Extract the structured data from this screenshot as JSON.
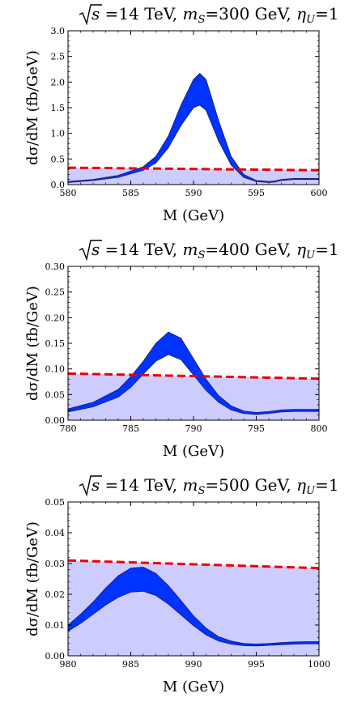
{
  "chart_data": [
    {
      "type": "area",
      "title_parts": {
        "sqrt_arg": "s",
        "rest": " =14 TeV, ",
        "m_sym": "m",
        "m_sub": "S",
        "m_val": "=300 GeV, ",
        "eta_sym": "η",
        "eta_sub": "U",
        "eta_val": "=1"
      },
      "xlabel": "M (GeV)",
      "ylabel": "dσ/dM (fb/GeV)",
      "xlim": [
        580,
        600
      ],
      "ylim": [
        0,
        3.0
      ],
      "xticks": [
        "580",
        "585",
        "590",
        "595",
        "600"
      ],
      "yticks": [
        "0.0",
        "0.5",
        "1.0",
        "1.5",
        "2.0",
        "2.5",
        "3.0"
      ],
      "background": {
        "name": "background",
        "color": "#ccccff",
        "x": [
          580,
          600
        ],
        "y": [
          0.33,
          0.28
        ]
      },
      "signal": {
        "name": "signal band",
        "color": "#0033ff",
        "x": [
          580,
          582,
          584,
          586,
          587,
          588,
          589,
          590,
          590.5,
          591,
          592,
          593,
          594,
          595,
          596,
          596.5,
          597,
          598,
          599,
          600
        ],
        "upper": [
          0.06,
          0.1,
          0.18,
          0.35,
          0.55,
          0.95,
          1.55,
          2.05,
          2.17,
          2.05,
          1.25,
          0.55,
          0.2,
          0.08,
          0.06,
          0.07,
          0.1,
          0.12,
          0.12,
          0.12
        ],
        "lower": [
          0.04,
          0.08,
          0.14,
          0.28,
          0.42,
          0.72,
          1.15,
          1.5,
          1.55,
          1.45,
          0.85,
          0.38,
          0.14,
          0.06,
          0.04,
          0.05,
          0.08,
          0.1,
          0.1,
          0.1
        ]
      }
    },
    {
      "type": "area",
      "title_parts": {
        "sqrt_arg": "s",
        "rest": " =14 TeV, ",
        "m_sym": "m",
        "m_sub": "S",
        "m_val": "=400 GeV, ",
        "eta_sym": "η",
        "eta_sub": "U",
        "eta_val": "=1"
      },
      "xlabel": "M (GeV)",
      "ylabel": "dσ/dM (fb/GeV)",
      "xlim": [
        780,
        800
      ],
      "ylim": [
        0,
        0.3
      ],
      "xticks": [
        "780",
        "785",
        "790",
        "795",
        "800"
      ],
      "yticks": [
        "0.00",
        "0.05",
        "0.10",
        "0.15",
        "0.20",
        "0.25",
        "0.30"
      ],
      "background": {
        "name": "background",
        "color": "#ccccff",
        "x": [
          780,
          800
        ],
        "y": [
          0.091,
          0.081
        ]
      },
      "signal": {
        "name": "signal band",
        "color": "#0033ff",
        "x": [
          780,
          782,
          784,
          785,
          786,
          787,
          788,
          789,
          790,
          791,
          792,
          793,
          794,
          795,
          796,
          797,
          798,
          799,
          800
        ],
        "upper": [
          0.022,
          0.035,
          0.06,
          0.085,
          0.115,
          0.15,
          0.172,
          0.16,
          0.12,
          0.08,
          0.048,
          0.028,
          0.018,
          0.015,
          0.017,
          0.02,
          0.021,
          0.021,
          0.021
        ],
        "lower": [
          0.016,
          0.026,
          0.045,
          0.064,
          0.09,
          0.115,
          0.128,
          0.118,
          0.088,
          0.058,
          0.035,
          0.02,
          0.013,
          0.011,
          0.013,
          0.016,
          0.017,
          0.017,
          0.017
        ]
      }
    },
    {
      "type": "area",
      "title_parts": {
        "sqrt_arg": "s",
        "rest": " =14 TeV, ",
        "m_sym": "m",
        "m_sub": "S",
        "m_val": "=500 GeV, ",
        "eta_sym": "η",
        "eta_sub": "U",
        "eta_val": "=1"
      },
      "xlabel": "M (GeV)",
      "ylabel": "dσ/dM (fb/GeV)",
      "xlim": [
        980,
        1000
      ],
      "ylim": [
        0,
        0.05
      ],
      "xticks": [
        "980",
        "985",
        "990",
        "995",
        "1000"
      ],
      "yticks": [
        "0.00",
        "0.01",
        "0.02",
        "0.03",
        "0.04",
        "0.05"
      ],
      "background": {
        "name": "background",
        "color": "#ccccff",
        "x": [
          980,
          1000
        ],
        "y": [
          0.031,
          0.0285
        ]
      },
      "signal": {
        "name": "signal band",
        "color": "#0033ff",
        "x": [
          980,
          981,
          982,
          983,
          984,
          985,
          986,
          987,
          988,
          989,
          990,
          991,
          992,
          993,
          994,
          995,
          996,
          997,
          998,
          999,
          1000
        ],
        "upper": [
          0.01,
          0.0135,
          0.0175,
          0.022,
          0.026,
          0.0285,
          0.0288,
          0.0268,
          0.0228,
          0.018,
          0.013,
          0.009,
          0.0062,
          0.0048,
          0.004,
          0.0038,
          0.004,
          0.0043,
          0.0045,
          0.0046,
          0.0046
        ],
        "lower": [
          0.008,
          0.0105,
          0.0135,
          0.0165,
          0.019,
          0.0207,
          0.021,
          0.0196,
          0.0168,
          0.0133,
          0.0098,
          0.0068,
          0.0048,
          0.0038,
          0.0033,
          0.0032,
          0.0034,
          0.0036,
          0.0038,
          0.0039,
          0.0039
        ]
      }
    }
  ]
}
